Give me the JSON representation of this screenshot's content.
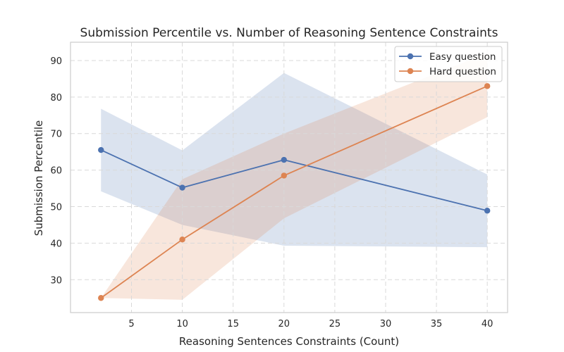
{
  "chart_data": {
    "type": "line",
    "title": "Submission Percentile vs. Number of Reasoning Sentence Constraints",
    "xlabel": "Reasoning Sentences Constraints (Count)",
    "ylabel": "Submission Percentile",
    "xlim": [
      -1,
      42
    ],
    "ylim": [
      21,
      95
    ],
    "xticks": [
      5,
      10,
      15,
      20,
      25,
      30,
      35,
      40
    ],
    "yticks": [
      30,
      40,
      50,
      60,
      70,
      80,
      90
    ],
    "grid": true,
    "legend_position": "top-right",
    "series": [
      {
        "name": "Easy question",
        "color": "#4c72b0",
        "band_color": "#4c72b0",
        "x": [
          2,
          10,
          20,
          40
        ],
        "y": [
          65.5,
          55.2,
          62.8,
          48.9
        ],
        "lower": [
          54.2,
          45.0,
          39.3,
          38.9
        ],
        "upper": [
          76.8,
          65.4,
          86.6,
          58.8
        ]
      },
      {
        "name": "Hard question",
        "color": "#dd8452",
        "band_color": "#dd8452",
        "x": [
          2,
          10,
          20,
          40
        ],
        "y": [
          25.0,
          41.0,
          58.5,
          83.0
        ],
        "lower": [
          25.0,
          24.5,
          46.8,
          74.5
        ],
        "upper": [
          25.0,
          57.5,
          70.0,
          92.0
        ]
      }
    ]
  }
}
